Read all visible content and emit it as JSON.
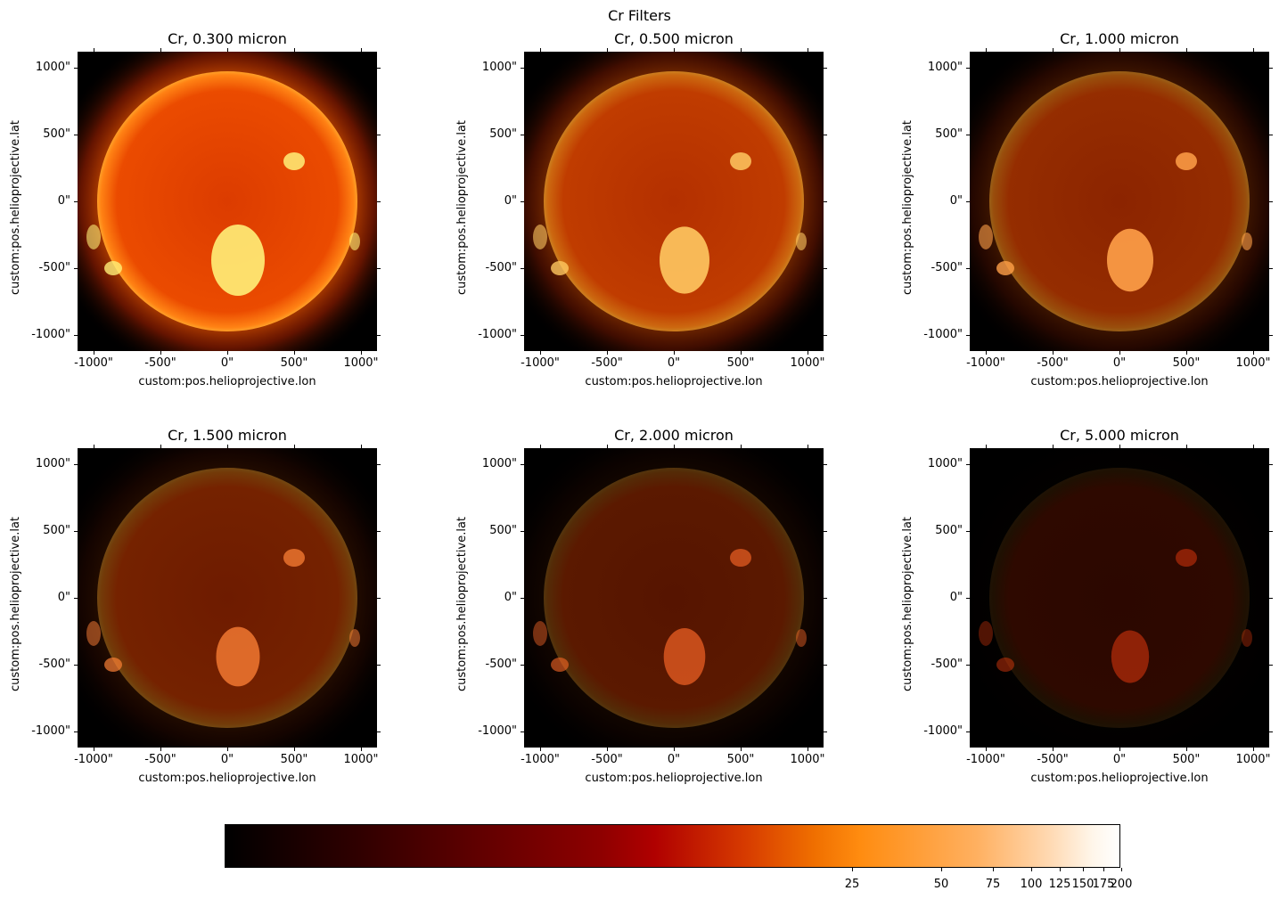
{
  "chart_data": {
    "title": "Cr Filters",
    "type": "heatmap",
    "panels": [
      {
        "title": "Cr, 0.300 micron",
        "brightness": 1.0
      },
      {
        "title": "Cr, 0.500 micron",
        "brightness": 0.8
      },
      {
        "title": "Cr, 1.000 micron",
        "brightness": 0.6
      },
      {
        "title": "Cr, 1.500 micron",
        "brightness": 0.45
      },
      {
        "title": "Cr, 2.000 micron",
        "brightness": 0.33
      },
      {
        "title": "Cr, 5.000 micron",
        "brightness": 0.12
      }
    ],
    "xlabel": "custom:pos.helioprojective.lon",
    "ylabel": "custom:pos.helioprojective.lat",
    "xticks": [
      "-1000\"",
      "-500\"",
      "0\"",
      "500\"",
      "1000\""
    ],
    "yticks": [
      "1000\"",
      "500\"",
      "0\"",
      "-500\"",
      "-1000\""
    ],
    "xlim": [
      -1120,
      1120
    ],
    "ylim": [
      -1120,
      1120
    ],
    "colorbar": {
      "ticks": [
        "25",
        "50",
        "75",
        "100",
        "125",
        "150",
        "175",
        "200"
      ],
      "colormap": "gist_heat"
    }
  }
}
